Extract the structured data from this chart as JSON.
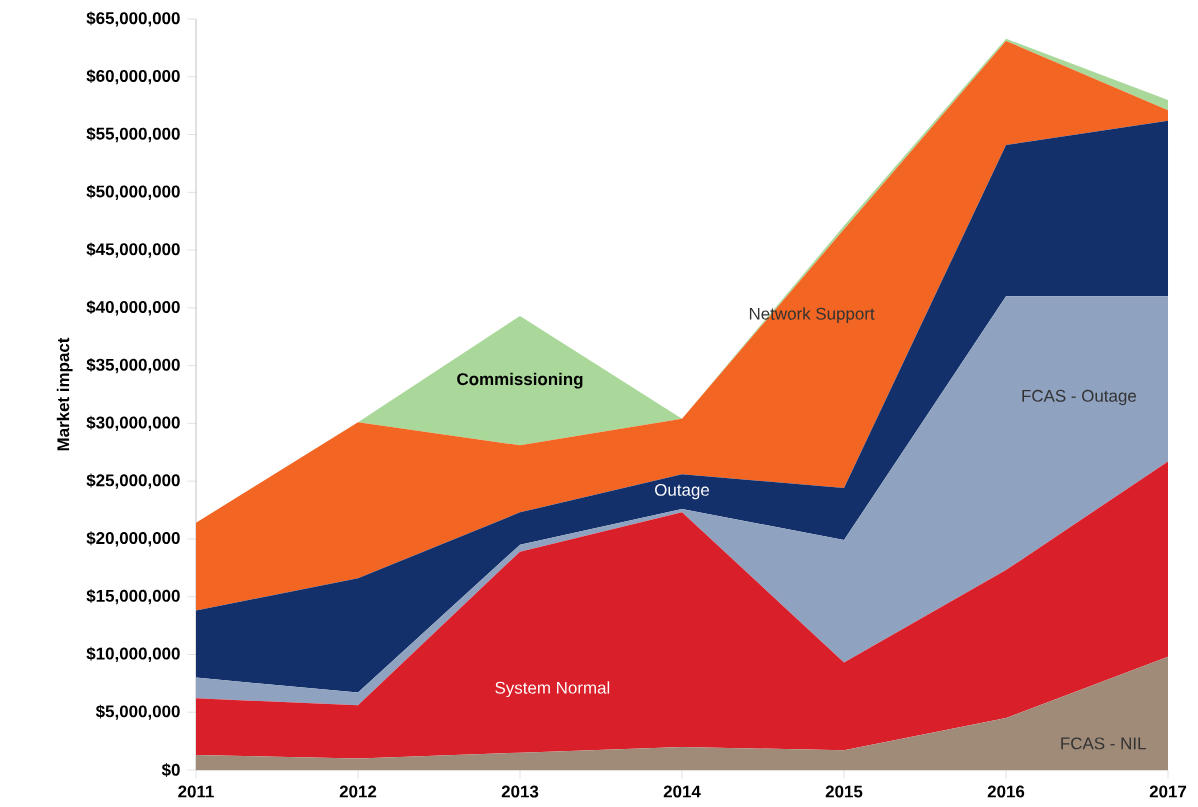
{
  "chart_data": {
    "type": "area",
    "stacked": true,
    "ylabel": "Market impact",
    "categories": [
      "2011",
      "2012",
      "2013",
      "2014",
      "2015",
      "2016",
      "2017"
    ],
    "series": [
      {
        "name": "FCAS - NIL",
        "color": "#a08a78",
        "values": [
          1300000,
          1000000,
          1500000,
          2000000,
          1700000,
          4500000,
          9800000
        ]
      },
      {
        "name": "System Normal",
        "color": "#d9202a",
        "values": [
          4900000,
          4600000,
          17400000,
          20300000,
          7600000,
          12800000,
          16900000
        ]
      },
      {
        "name": "FCAS - Outage",
        "color": "#8fa3c1",
        "values": [
          1800000,
          1100000,
          600000,
          300000,
          10600000,
          23700000,
          14300000
        ]
      },
      {
        "name": "Outage",
        "color": "#14306a",
        "values": [
          5800000,
          9900000,
          2800000,
          3000000,
          4500000,
          13100000,
          15200000
        ]
      },
      {
        "name": "Network Support",
        "color": "#f26522",
        "values": [
          7600000,
          13500000,
          5800000,
          4800000,
          22400000,
          9000000,
          900000
        ]
      },
      {
        "name": "Commissioning",
        "color": "#a9d89a",
        "values": [
          0,
          0,
          11200000,
          0,
          300000,
          200000,
          900000
        ]
      }
    ],
    "ylim": [
      0,
      65000000
    ],
    "yticks": [
      {
        "value": 0,
        "label": "$0"
      },
      {
        "value": 5000000,
        "label": "$5,000,000"
      },
      {
        "value": 10000000,
        "label": "$10,000,000"
      },
      {
        "value": 15000000,
        "label": "$15,000,000"
      },
      {
        "value": 20000000,
        "label": "$20,000,000"
      },
      {
        "value": 25000000,
        "label": "$25,000,000"
      },
      {
        "value": 30000000,
        "label": "$30,000,000"
      },
      {
        "value": 35000000,
        "label": "$35,000,000"
      },
      {
        "value": 40000000,
        "label": "$40,000,000"
      },
      {
        "value": 45000000,
        "label": "$45,000,000"
      },
      {
        "value": 50000000,
        "label": "$50,000,000"
      },
      {
        "value": 55000000,
        "label": "$55,000,000"
      },
      {
        "value": 60000000,
        "label": "$60,000,000"
      },
      {
        "value": 65000000,
        "label": "$65,000,000"
      }
    ],
    "grid": false,
    "legend": false
  }
}
